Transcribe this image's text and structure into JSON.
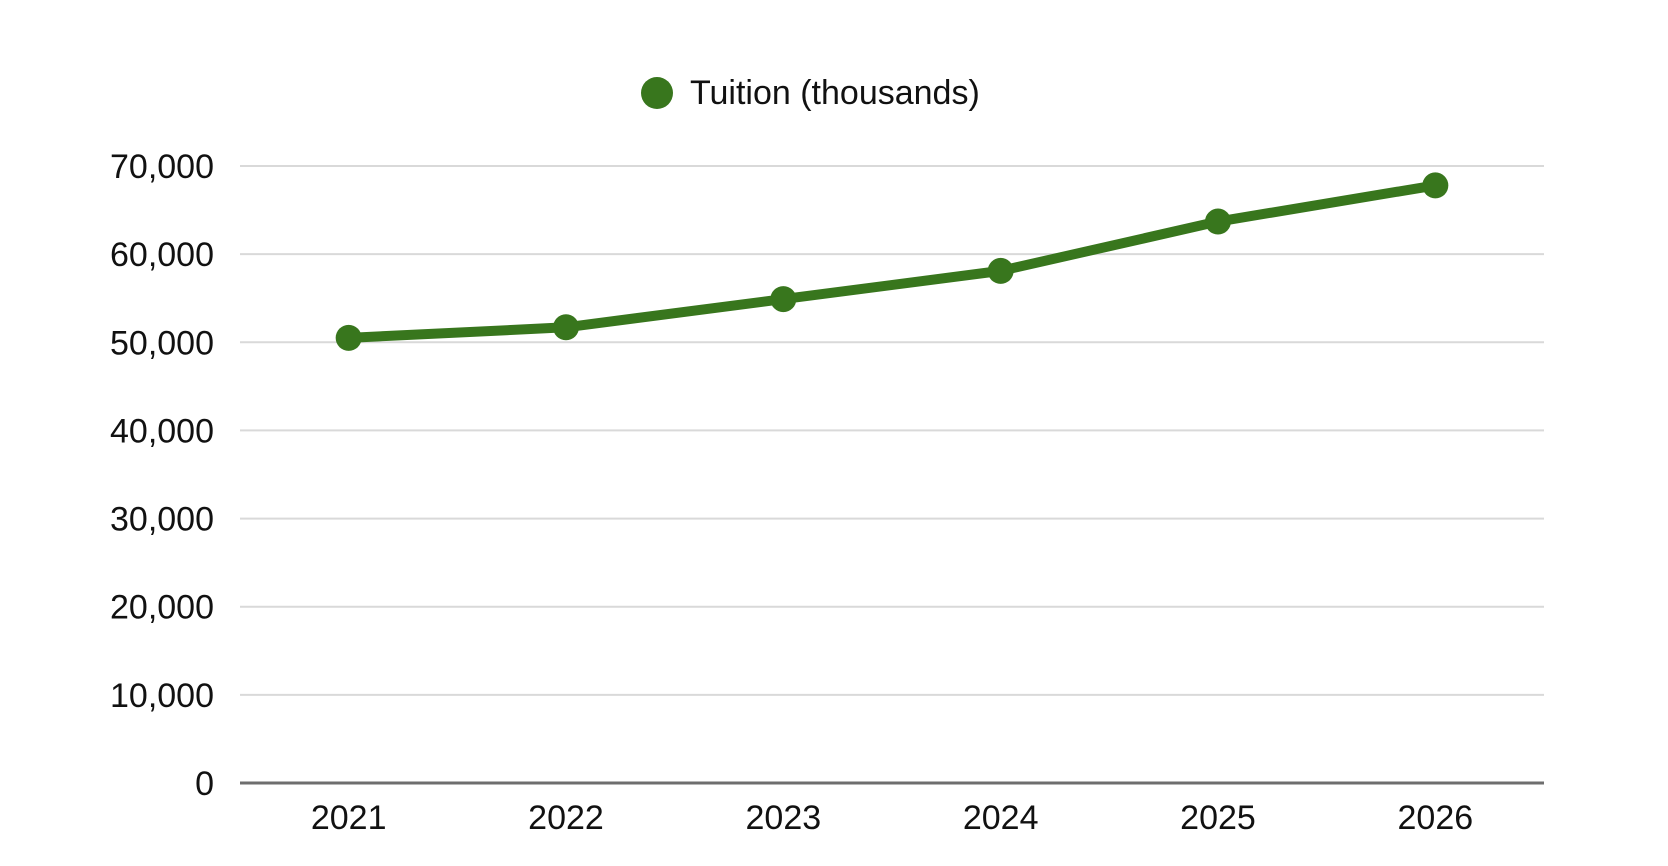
{
  "chart_data": {
    "type": "line",
    "categories": [
      "2021",
      "2022",
      "2023",
      "2024",
      "2025",
      "2026"
    ],
    "series": [
      {
        "name": "Tuition (thousands)",
        "color": "#38761d",
        "values": [
          50500,
          51700,
          54900,
          58100,
          63700,
          67800
        ]
      }
    ],
    "title": "",
    "xlabel": "",
    "ylabel": "",
    "ylim": [
      0,
      70000
    ],
    "ytick_interval": 10000,
    "ytick_labels": [
      "0",
      "10,000",
      "20,000",
      "30,000",
      "40,000",
      "50,000",
      "60,000",
      "70,000"
    ],
    "grid": true,
    "legend_position": "top-center",
    "colors": {
      "series_green": "#38761d",
      "gridline": "#d9d9d9",
      "axis_baseline": "#6e6e6e",
      "label_text": "#111111",
      "background": "#ffffff"
    }
  }
}
